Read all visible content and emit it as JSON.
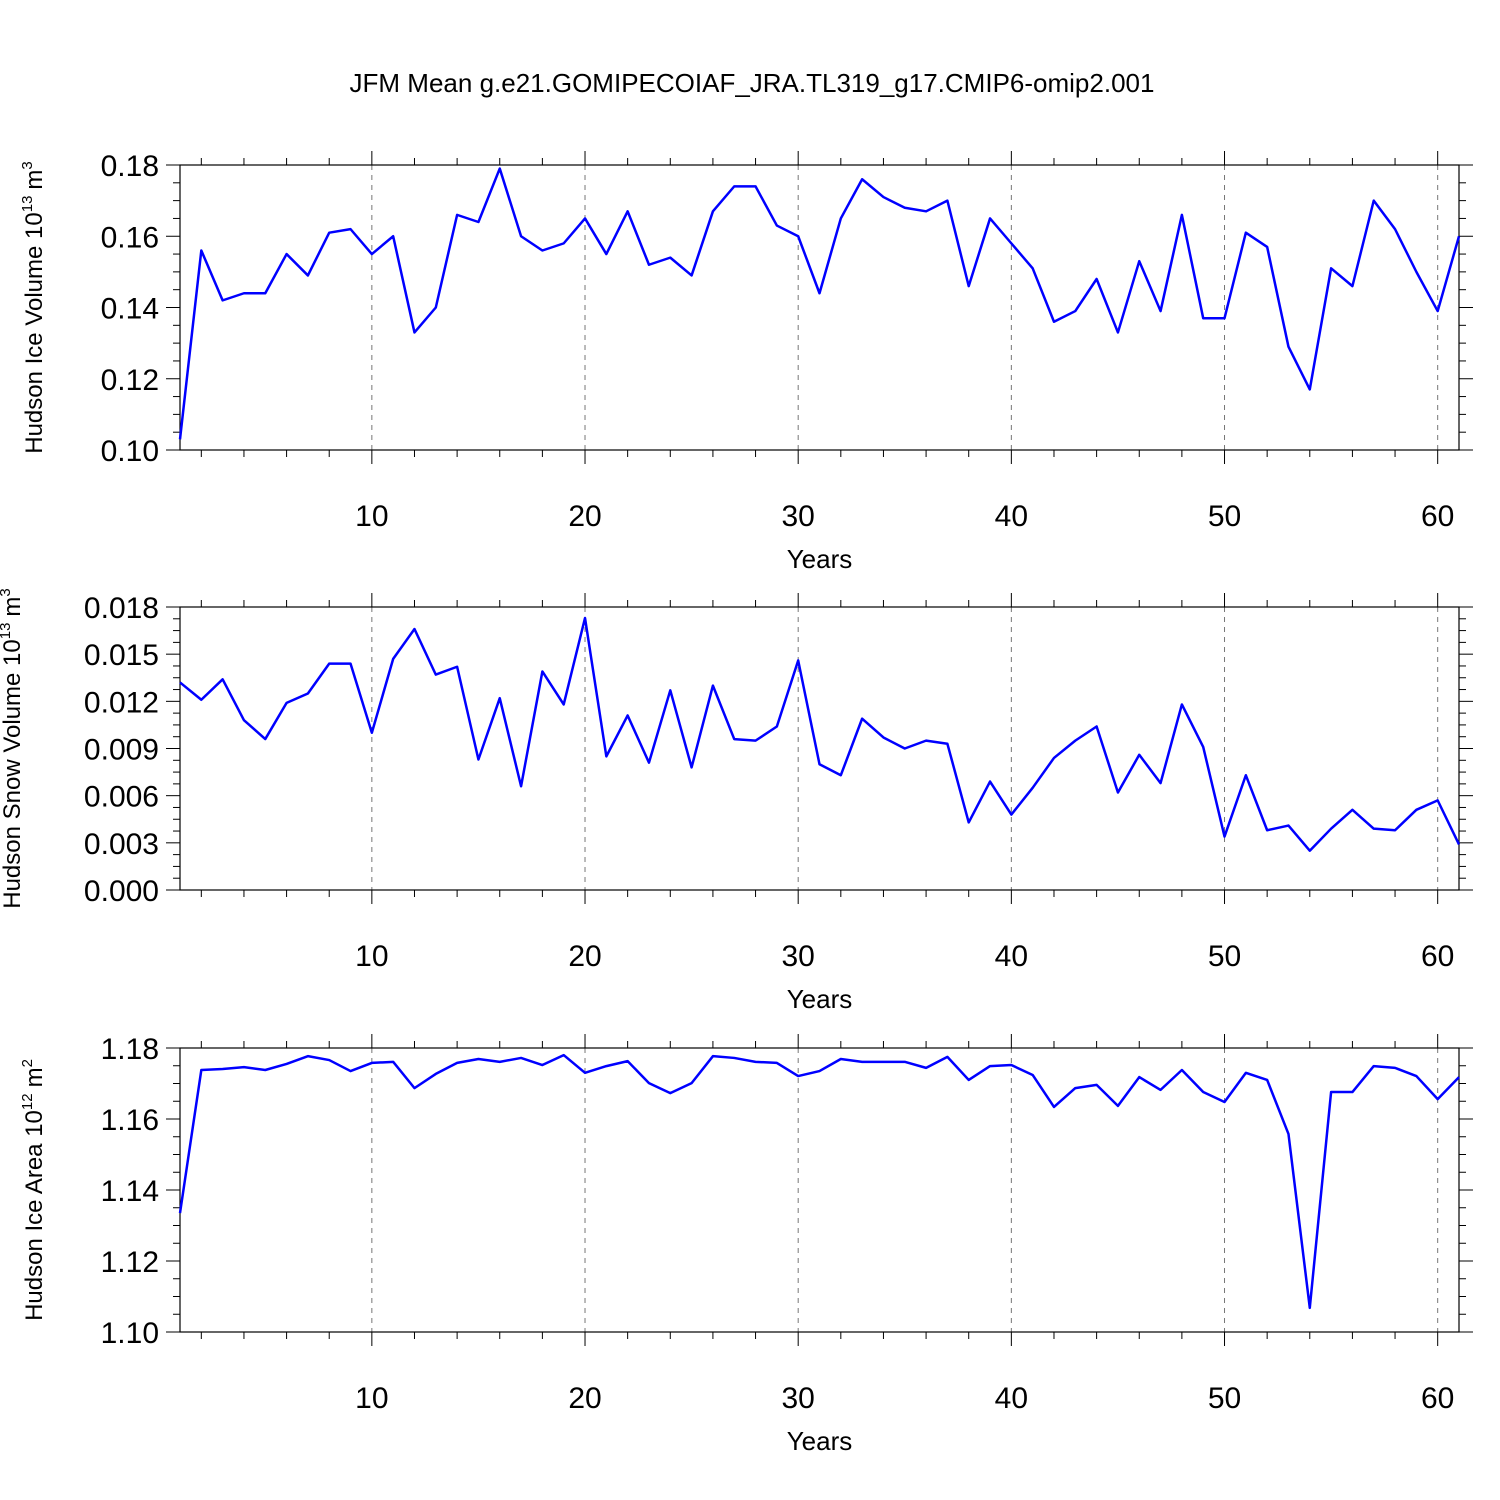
{
  "title": "JFM Mean g.e21.GOMIPECOIAF_JRA.TL319_g17.CMIP6-omip2.001",
  "chart_data": [
    {
      "type": "line",
      "ylabel": {
        "text": "Hudson Ice Volume 10",
        "power": "13",
        "unit": "m",
        "unit_power": "3"
      },
      "xlabel": "Years",
      "x": [
        1,
        2,
        3,
        4,
        5,
        6,
        7,
        8,
        9,
        10,
        11,
        12,
        13,
        14,
        15,
        16,
        17,
        18,
        19,
        20,
        21,
        22,
        23,
        24,
        25,
        26,
        27,
        28,
        29,
        30,
        31,
        32,
        33,
        34,
        35,
        36,
        37,
        38,
        39,
        40,
        41,
        42,
        43,
        44,
        45,
        46,
        47,
        48,
        49,
        50,
        51,
        52,
        53,
        54,
        55,
        56,
        57,
        58,
        59,
        60,
        61
      ],
      "series": [
        {
          "color": "#0000ff",
          "values": [
            0.103,
            0.156,
            0.142,
            0.144,
            0.144,
            0.155,
            0.149,
            0.161,
            0.162,
            0.155,
            0.16,
            0.133,
            0.14,
            0.166,
            0.164,
            0.179,
            0.16,
            0.156,
            0.158,
            0.165,
            0.155,
            0.167,
            0.152,
            0.154,
            0.149,
            0.167,
            0.174,
            0.174,
            0.163,
            0.16,
            0.144,
            0.165,
            0.176,
            0.171,
            0.168,
            0.167,
            0.17,
            0.146,
            0.165,
            0.158,
            0.151,
            0.136,
            0.139,
            0.148,
            0.133,
            0.153,
            0.139,
            0.166,
            0.137,
            0.137,
            0.161,
            0.157,
            0.129,
            0.117,
            0.151,
            0.146,
            0.17,
            0.162,
            0.15,
            0.139,
            0.16
          ]
        }
      ],
      "xlim": [
        1,
        61
      ],
      "xticks": [
        10,
        20,
        30,
        40,
        50,
        60
      ],
      "ylim": [
        0.1,
        0.18
      ],
      "yticks": [
        {
          "value": 0.1,
          "label": "0.10"
        },
        0.12,
        0.14,
        0.16,
        0.18
      ],
      "grid": true
    },
    {
      "type": "line",
      "ylabel": {
        "text": "Hudson Snow Volume 10",
        "power": "13",
        "unit": "m",
        "unit_power": "3"
      },
      "xlabel": "Years",
      "x": [
        1,
        2,
        3,
        4,
        5,
        6,
        7,
        8,
        9,
        10,
        11,
        12,
        13,
        14,
        15,
        16,
        17,
        18,
        19,
        20,
        21,
        22,
        23,
        24,
        25,
        26,
        27,
        28,
        29,
        30,
        31,
        32,
        33,
        34,
        35,
        36,
        37,
        38,
        39,
        40,
        41,
        42,
        43,
        44,
        45,
        46,
        47,
        48,
        49,
        50,
        51,
        52,
        53,
        54,
        55,
        56,
        57,
        58,
        59,
        60,
        61
      ],
      "series": [
        {
          "color": "#0000ff",
          "values": [
            0.0132,
            0.0121,
            0.0134,
            0.0108,
            0.0096,
            0.0119,
            0.0125,
            0.0144,
            0.0144,
            0.01,
            0.0147,
            0.0166,
            0.0137,
            0.0142,
            0.0083,
            0.0122,
            0.0066,
            0.0139,
            0.0118,
            0.0173,
            0.0085,
            0.0111,
            0.0081,
            0.0127,
            0.0078,
            0.013,
            0.0096,
            0.0095,
            0.0104,
            0.0146,
            0.008,
            0.0073,
            0.0109,
            0.0097,
            0.009,
            0.0095,
            0.0093,
            0.0043,
            0.0069,
            0.0048,
            0.0065,
            0.0084,
            0.0095,
            0.0104,
            0.0062,
            0.0086,
            0.0068,
            0.0118,
            0.0091,
            0.0034,
            0.0073,
            0.0038,
            0.0041,
            0.0025,
            0.0039,
            0.0051,
            0.0039,
            0.0038,
            0.0051,
            0.0057,
            0.0029
          ]
        }
      ],
      "xlim": [
        1,
        61
      ],
      "xticks": [
        10,
        20,
        30,
        40,
        50,
        60
      ],
      "ylim": [
        0,
        0.018
      ],
      "yticks": [
        {
          "value": 0,
          "label": "0.000"
        },
        0.003,
        0.006,
        0.009,
        0.012,
        0.015,
        0.018
      ],
      "grid": true
    },
    {
      "type": "line",
      "ylabel": {
        "text": "Hudson Ice Area 10",
        "power": "12",
        "unit": "m",
        "unit_power": "2"
      },
      "xlabel": "Years",
      "x": [
        1,
        2,
        3,
        4,
        5,
        6,
        7,
        8,
        9,
        10,
        11,
        12,
        13,
        14,
        15,
        16,
        17,
        18,
        19,
        20,
        21,
        22,
        23,
        24,
        25,
        26,
        27,
        28,
        29,
        30,
        31,
        32,
        33,
        34,
        35,
        36,
        37,
        38,
        39,
        40,
        41,
        42,
        43,
        44,
        45,
        46,
        47,
        48,
        49,
        50,
        51,
        52,
        53,
        54,
        55,
        56,
        57,
        58,
        59,
        60,
        61
      ],
      "series": [
        {
          "color": "#0000ff",
          "values": [
            1.1335,
            1.1738,
            1.1741,
            1.1746,
            1.1738,
            1.1755,
            1.1777,
            1.1766,
            1.1735,
            1.1758,
            1.1761,
            1.1687,
            1.1727,
            1.1758,
            1.1769,
            1.1761,
            1.1772,
            1.1752,
            1.178,
            1.173,
            1.1749,
            1.1763,
            1.1701,
            1.1673,
            1.1701,
            1.1777,
            1.1772,
            1.1761,
            1.1758,
            1.1721,
            1.1735,
            1.1769,
            1.1761,
            1.1761,
            1.1761,
            1.1744,
            1.1775,
            1.171,
            1.1749,
            1.1752,
            1.1724,
            1.1634,
            1.1687,
            1.1696,
            1.1637,
            1.1718,
            1.1682,
            1.1738,
            1.1676,
            1.1648,
            1.173,
            1.171,
            1.1558,
            1.1068,
            1.1676,
            1.1676,
            1.1749,
            1.1744,
            1.1721,
            1.1656,
            1.1718
          ]
        }
      ],
      "xlim": [
        1,
        61
      ],
      "xticks": [
        10,
        20,
        30,
        40,
        50,
        60
      ],
      "ylim": [
        1.1,
        1.18
      ],
      "yticks": [
        {
          "value": 1.1,
          "label": "1.10"
        },
        1.12,
        1.14,
        1.16,
        1.18
      ],
      "grid": true
    }
  ]
}
